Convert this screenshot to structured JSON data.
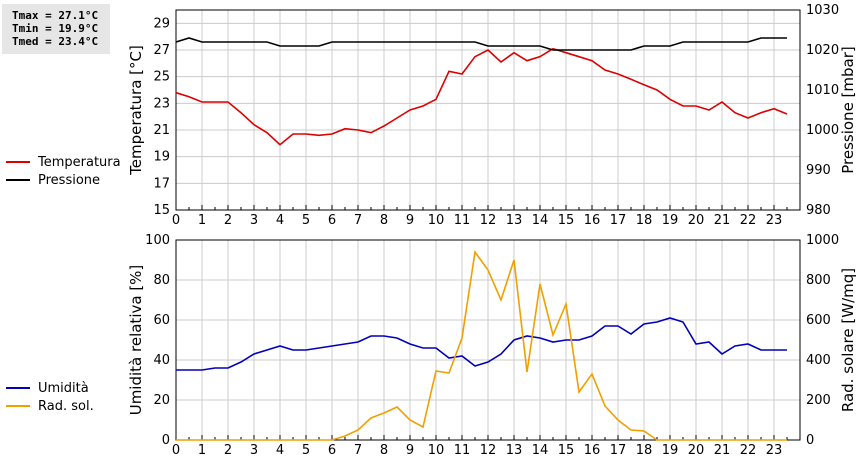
{
  "stats": {
    "tmax": "Tmax = 27.1°C",
    "tmin": "Tmin = 19.9°C",
    "tmed": "Tmed = 23.4°C"
  },
  "colors": {
    "temperature": "#dd0000",
    "pressure": "#000000",
    "humidity": "#0000bb",
    "radiation": "#f0a000"
  },
  "chart_data": [
    {
      "type": "line",
      "ylabel": "Temperatura [°C]",
      "y2label": "Pressione [mbar]",
      "xlim": [
        0,
        24
      ],
      "xticks": [
        "0",
        "1",
        "2",
        "3",
        "4",
        "5",
        "6",
        "7",
        "8",
        "9",
        "10",
        "11",
        "12",
        "13",
        "14",
        "15",
        "16",
        "17",
        "18",
        "19",
        "20",
        "21",
        "22",
        "23"
      ],
      "ylim": [
        15,
        30
      ],
      "yticks": [
        "15",
        "17",
        "19",
        "21",
        "23",
        "25",
        "27",
        "29"
      ],
      "y2lim": [
        980,
        1030
      ],
      "y2ticks": [
        "980",
        "990",
        "1000",
        "1010",
        "1020",
        "1030"
      ],
      "grid": true,
      "legend": "left",
      "series": [
        {
          "name": "Temperatura",
          "axis": "left",
          "color": "#dd0000",
          "x": [
            0,
            0.5,
            1,
            1.5,
            2,
            2.5,
            3,
            3.5,
            4,
            4.5,
            5,
            5.5,
            6,
            6.5,
            7,
            7.5,
            8,
            8.5,
            9,
            9.5,
            10,
            10.5,
            11,
            11.5,
            12,
            12.5,
            13,
            13.5,
            14,
            14.5,
            15,
            15.5,
            16,
            16.5,
            17,
            17.5,
            18,
            18.5,
            19,
            19.5,
            20,
            20.5,
            21,
            21.5,
            22,
            22.5,
            23,
            23.5
          ],
          "values": [
            23.8,
            23.5,
            23.1,
            23.1,
            23.1,
            22.3,
            21.4,
            20.8,
            19.9,
            20.7,
            20.7,
            20.6,
            20.7,
            21.1,
            21.0,
            20.8,
            21.3,
            21.9,
            22.5,
            22.8,
            23.3,
            25.4,
            25.2,
            26.5,
            27.0,
            26.1,
            26.8,
            26.2,
            26.5,
            27.1,
            26.8,
            26.5,
            26.2,
            25.5,
            25.2,
            24.8,
            24.4,
            24.0,
            23.3,
            22.8,
            22.8,
            22.5,
            23.1,
            22.3,
            21.9,
            22.3,
            22.6,
            22.2
          ]
        },
        {
          "name": "Pressione",
          "axis": "right",
          "color": "#000000",
          "x": [
            0,
            0.5,
            1,
            1.5,
            2,
            2.5,
            3,
            3.5,
            4,
            4.5,
            5,
            5.5,
            6,
            6.5,
            7,
            7.5,
            8,
            8.5,
            9,
            9.5,
            10,
            10.5,
            11,
            11.5,
            12,
            12.5,
            13,
            13.5,
            14,
            14.5,
            15,
            15.5,
            16,
            16.5,
            17,
            17.5,
            18,
            18.5,
            19,
            19.5,
            20,
            20.5,
            21,
            21.5,
            22,
            22.5,
            23,
            23.5
          ],
          "values": [
            1022,
            1023,
            1022,
            1022,
            1022,
            1022,
            1022,
            1022,
            1021,
            1021,
            1021,
            1021,
            1022,
            1022,
            1022,
            1022,
            1022,
            1022,
            1022,
            1022,
            1022,
            1022,
            1022,
            1022,
            1021,
            1021,
            1021,
            1021,
            1021,
            1020,
            1020,
            1020,
            1020,
            1020,
            1020,
            1020,
            1021,
            1021,
            1021,
            1022,
            1022,
            1022,
            1022,
            1022,
            1022,
            1023,
            1023,
            1023
          ]
        }
      ]
    },
    {
      "type": "line",
      "ylabel": "Umidità relativa [%]",
      "y2label": "Rad. solare [W/mq]",
      "xlim": [
        0,
        24
      ],
      "xticks": [
        "0",
        "1",
        "2",
        "3",
        "4",
        "5",
        "6",
        "7",
        "8",
        "9",
        "10",
        "11",
        "12",
        "13",
        "14",
        "15",
        "16",
        "17",
        "18",
        "19",
        "20",
        "21",
        "22",
        "23"
      ],
      "ylim": [
        0,
        100
      ],
      "yticks": [
        "0",
        "20",
        "40",
        "60",
        "80",
        "100"
      ],
      "y2lim": [
        0,
        1000
      ],
      "y2ticks": [
        "0",
        "200",
        "400",
        "600",
        "800",
        "1000"
      ],
      "grid": true,
      "legend": "left",
      "series": [
        {
          "name": "Umidità",
          "axis": "left",
          "color": "#0000bb",
          "x": [
            0,
            0.5,
            1,
            1.5,
            2,
            2.5,
            3,
            3.5,
            4,
            4.5,
            5,
            5.5,
            6,
            6.5,
            7,
            7.5,
            8,
            8.5,
            9,
            9.5,
            10,
            10.5,
            11,
            11.5,
            12,
            12.5,
            13,
            13.5,
            14,
            14.5,
            15,
            15.5,
            16,
            16.5,
            17,
            17.5,
            18,
            18.5,
            19,
            19.5,
            20,
            20.5,
            21,
            21.5,
            22,
            22.5,
            23,
            23.5
          ],
          "values": [
            35,
            35,
            35,
            36,
            36,
            39,
            43,
            45,
            47,
            45,
            45,
            46,
            47,
            48,
            49,
            52,
            52,
            51,
            48,
            46,
            46,
            41,
            42,
            37,
            39,
            43,
            50,
            52,
            51,
            49,
            50,
            50,
            52,
            57,
            57,
            53,
            58,
            59,
            61,
            59,
            48,
            49,
            43,
            47,
            48,
            45,
            45,
            45
          ]
        },
        {
          "name": "Rad. sol.",
          "axis": "right",
          "color": "#f0a000",
          "x": [
            0,
            0.5,
            1,
            1.5,
            2,
            2.5,
            3,
            3.5,
            4,
            4.5,
            5,
            5.5,
            6,
            6.5,
            7,
            7.5,
            8,
            8.5,
            9,
            9.5,
            10,
            10.5,
            11,
            11.5,
            12,
            12.5,
            13,
            13.5,
            14,
            14.5,
            15,
            15.5,
            16,
            16.5,
            17,
            17.5,
            18,
            18.5,
            19,
            19.5,
            20,
            20.5,
            21,
            21.5,
            22,
            22.5,
            23,
            23.5
          ],
          "values": [
            0,
            0,
            0,
            0,
            0,
            0,
            0,
            0,
            0,
            0,
            0,
            0,
            0,
            20,
            50,
            110,
            135,
            165,
            100,
            65,
            345,
            335,
            510,
            940,
            850,
            700,
            900,
            340,
            780,
            525,
            680,
            240,
            330,
            170,
            100,
            50,
            45,
            0,
            0,
            0,
            0,
            0,
            0,
            0,
            0,
            0,
            0,
            0
          ]
        }
      ]
    }
  ]
}
